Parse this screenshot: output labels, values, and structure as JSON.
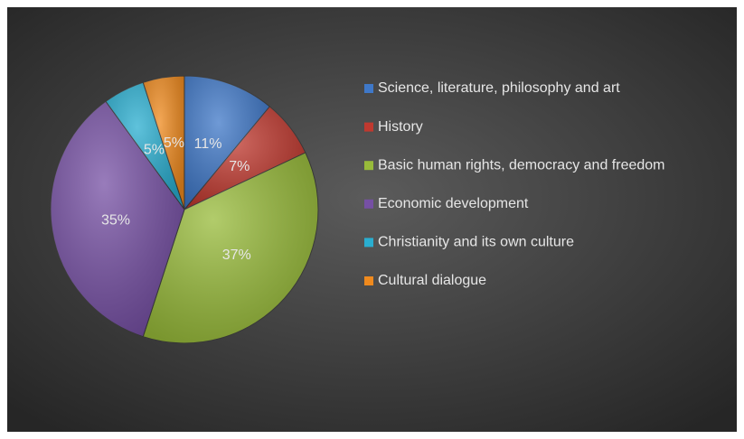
{
  "chart_data": {
    "type": "pie",
    "categories": [
      "Science, literature, philosophy and art",
      "History",
      "Basic human rights, democracy and freedom",
      "Economic development",
      "Christianity and its own culture",
      "Cultural dialogue"
    ],
    "values": [
      11,
      7,
      37,
      35,
      5,
      5
    ],
    "value_labels": [
      "11%",
      "7%",
      "37%",
      "35%",
      "5%",
      "5%"
    ],
    "colors": [
      "#3f78c8",
      "#c0392f",
      "#98bb3a",
      "#7650a4",
      "#2aaed0",
      "#ef8a1e"
    ],
    "legend": "right"
  }
}
